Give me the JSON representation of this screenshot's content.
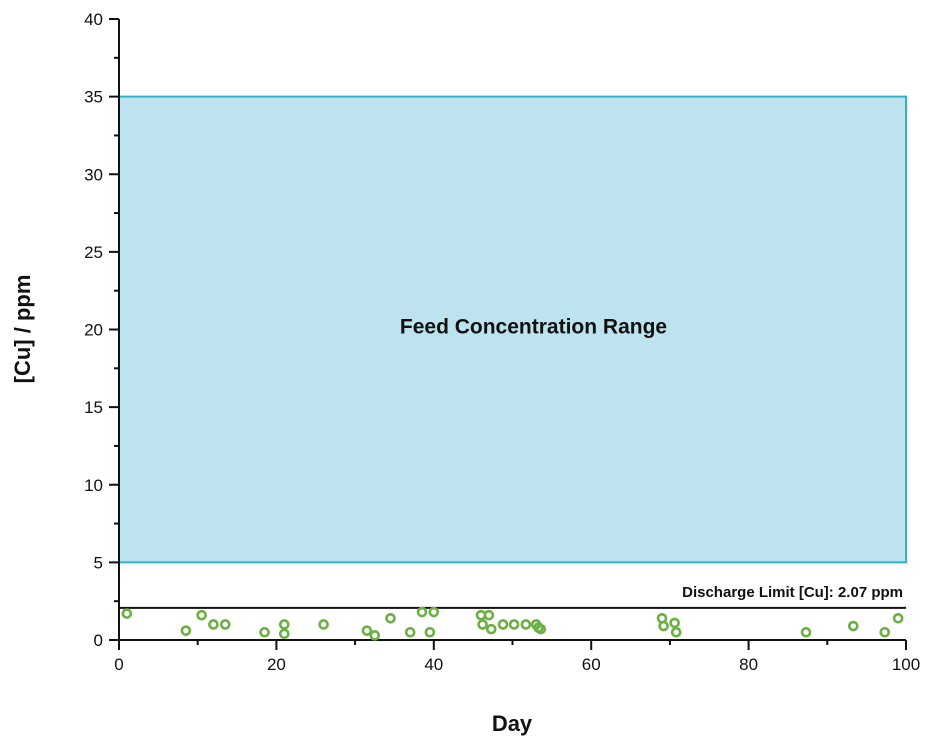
{
  "chart_data": {
    "type": "scatter",
    "xlabel": "Day",
    "ylabel": "[Cu] / ppm",
    "xlim": [
      0,
      100
    ],
    "ylim": [
      0,
      40
    ],
    "x_ticks": [
      0,
      20,
      40,
      60,
      80,
      100
    ],
    "y_ticks": [
      0,
      5,
      10,
      15,
      20,
      25,
      30,
      35,
      40
    ],
    "feed_range": {
      "label": "Feed Concentration Range",
      "x": [
        0,
        100
      ],
      "y": [
        5,
        35
      ],
      "fill": "#bce3ee",
      "stroke": "#2bb5cc"
    },
    "discharge_limit": {
      "label": "Discharge Limit [Cu]: 2.07 ppm",
      "value": 2.07
    },
    "series": [
      {
        "color": "#6ab043",
        "points": [
          [
            1,
            1.7
          ],
          [
            8.5,
            0.6
          ],
          [
            10.5,
            1.6
          ],
          [
            12,
            1.0
          ],
          [
            13.5,
            1.0
          ],
          [
            18.5,
            0.5
          ],
          [
            21,
            1.0
          ],
          [
            21,
            0.4
          ],
          [
            26,
            1.0
          ],
          [
            31.5,
            0.6
          ],
          [
            32.5,
            0.3
          ],
          [
            34.5,
            1.4
          ],
          [
            37,
            0.5
          ],
          [
            38.5,
            1.8
          ],
          [
            39.5,
            0.5
          ],
          [
            40,
            1.8
          ],
          [
            46,
            1.6
          ],
          [
            46.2,
            1.0
          ],
          [
            47,
            1.6
          ],
          [
            47.3,
            0.7
          ],
          [
            48.8,
            1.0
          ],
          [
            50.2,
            1.0
          ],
          [
            51.7,
            1.0
          ],
          [
            53,
            1.0
          ],
          [
            53.3,
            0.8
          ],
          [
            53.6,
            0.7
          ],
          [
            69,
            1.4
          ],
          [
            69.2,
            0.9
          ],
          [
            70.6,
            1.1
          ],
          [
            70.8,
            0.5
          ],
          [
            87.3,
            0.5
          ],
          [
            93.3,
            0.9
          ],
          [
            97.3,
            0.5
          ],
          [
            99,
            1.4
          ]
        ]
      }
    ]
  }
}
